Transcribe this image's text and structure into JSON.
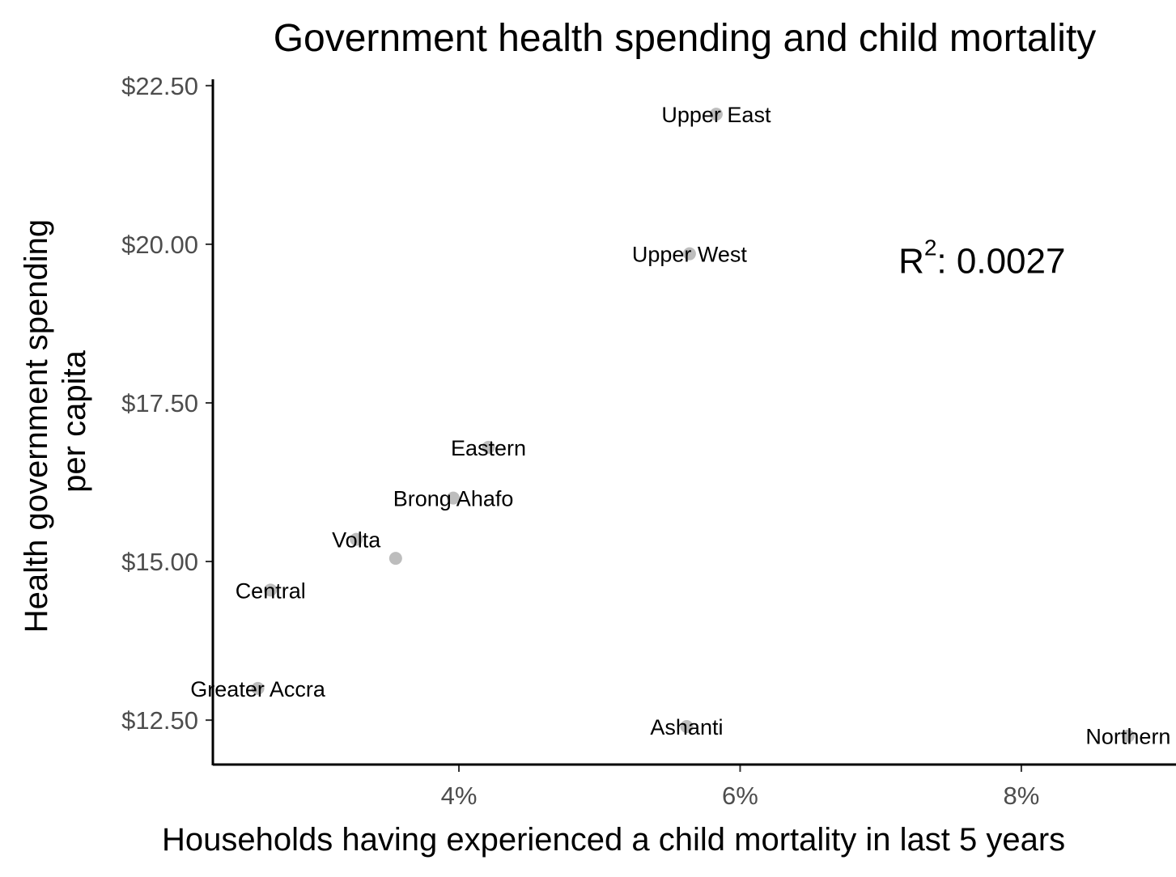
{
  "chart_data": {
    "type": "scatter",
    "title": "Government health spending and child mortality",
    "xlabel": "Households having experienced a child mortality in last 5 years",
    "ylabel": [
      "Health government spending",
      "per capita"
    ],
    "xlim": [
      2.25,
      9.1
    ],
    "ylim": [
      11.8,
      22.6
    ],
    "x_ticks": [
      {
        "value": 4,
        "label": "4%"
      },
      {
        "value": 6,
        "label": "6%"
      },
      {
        "value": 8,
        "label": "8%"
      }
    ],
    "y_ticks": [
      {
        "value": 12.5,
        "label": "$12.50"
      },
      {
        "value": 15,
        "label": "$15.00"
      },
      {
        "value": 17.5,
        "label": "$17.50"
      },
      {
        "value": 20,
        "label": "$20.00"
      },
      {
        "value": 22.5,
        "label": "$22.50"
      }
    ],
    "points": [
      {
        "label": "Upper East",
        "x": 5.83,
        "y": 22.05
      },
      {
        "label": "Upper West",
        "x": 5.64,
        "y": 19.85
      },
      {
        "label": "Eastern",
        "x": 4.21,
        "y": 16.8
      },
      {
        "label": "Brong Ahafo",
        "x": 3.96,
        "y": 16.0
      },
      {
        "label": "Volta",
        "x": 3.27,
        "y": 15.35
      },
      {
        "label": "",
        "x": 3.55,
        "y": 15.05
      },
      {
        "label": "Central",
        "x": 2.66,
        "y": 14.55
      },
      {
        "label": "Greater Accra",
        "x": 2.57,
        "y": 13.0
      },
      {
        "label": "Ashanti",
        "x": 5.62,
        "y": 12.4
      },
      {
        "label": "Northern",
        "x": 8.76,
        "y": 12.25
      }
    ],
    "annotation": {
      "base": "R",
      "exponent": "2",
      "text": ": 0.0027",
      "x": 7.72,
      "y": 19.75
    },
    "grid": false,
    "legend": "none"
  }
}
